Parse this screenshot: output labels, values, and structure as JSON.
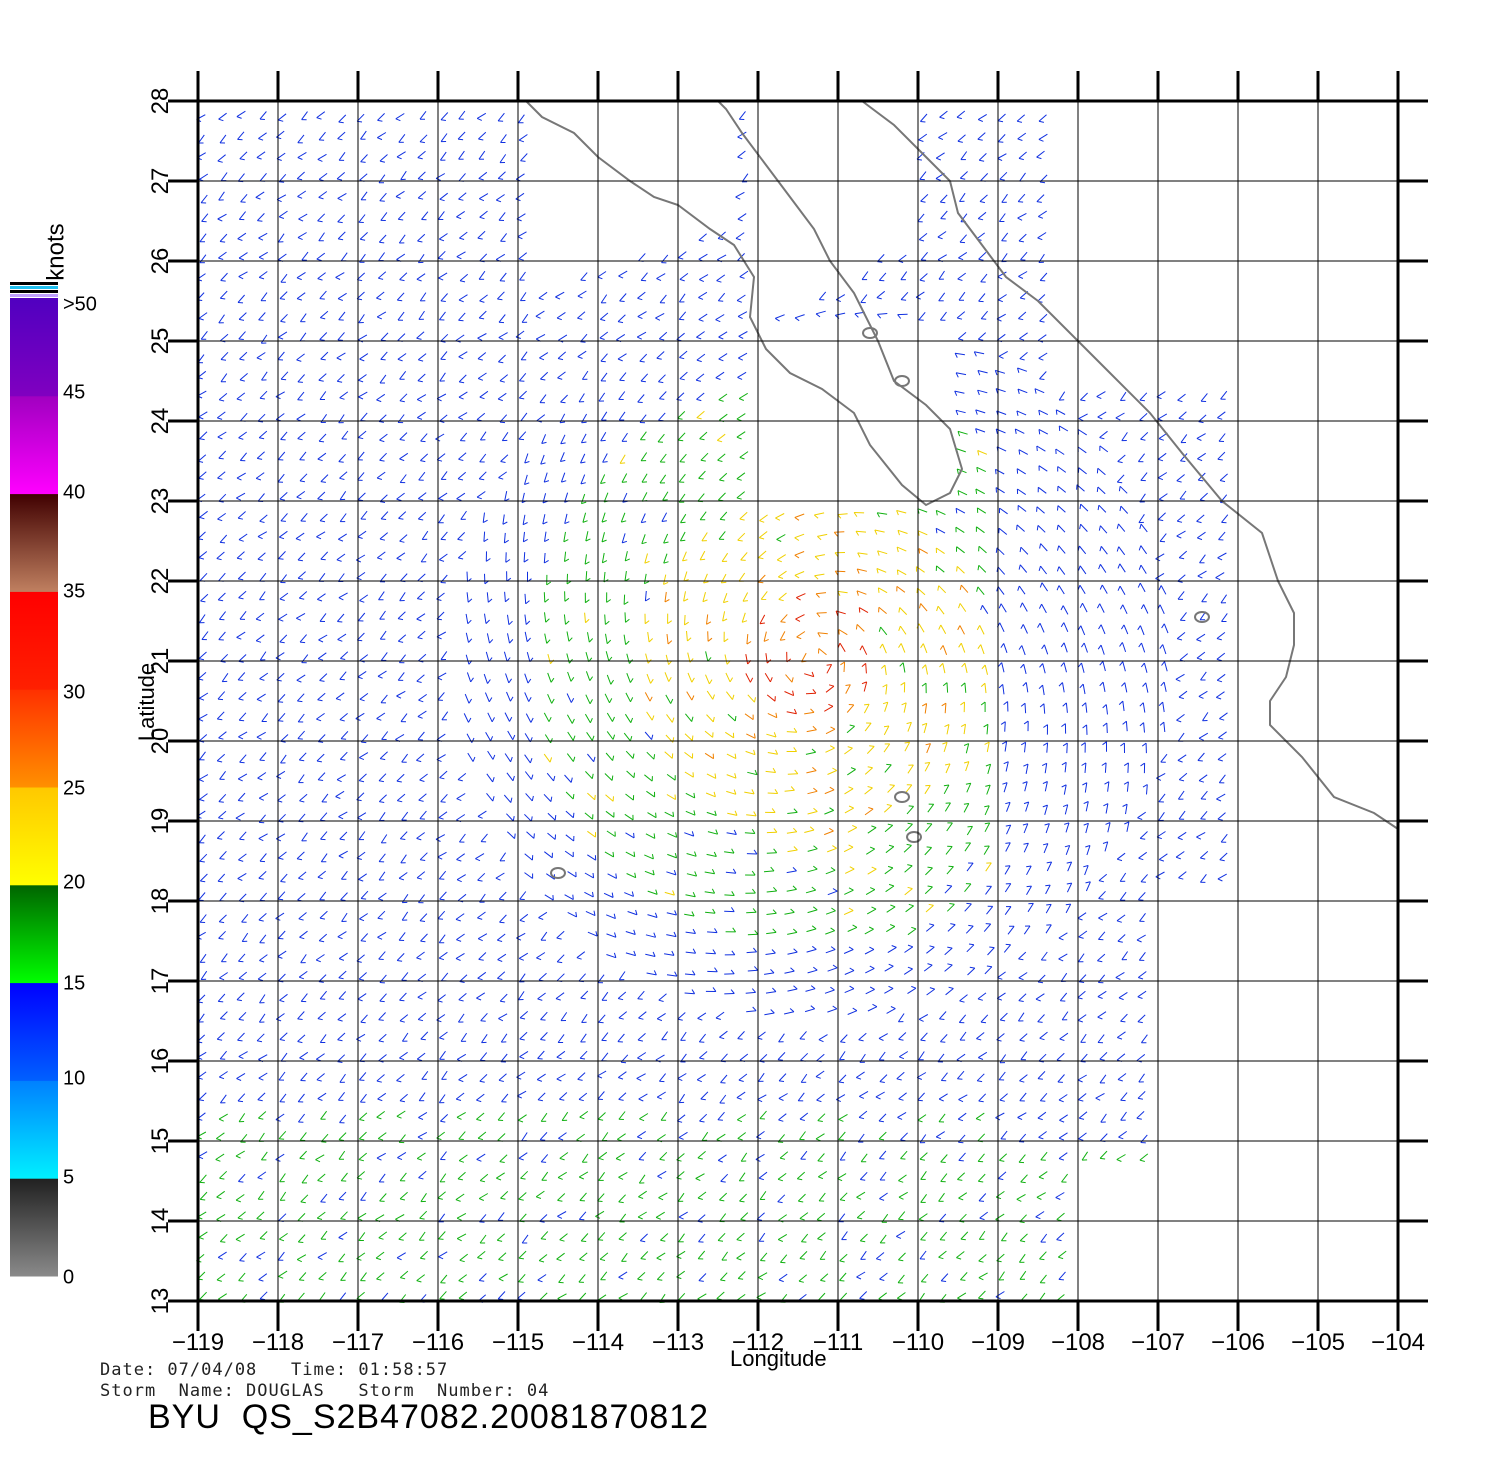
{
  "map": {
    "xlabel": "Longitude",
    "ylabel": "Latitude",
    "lon_range": [
      -119,
      -104
    ],
    "lat_range": [
      13,
      28
    ],
    "lon_ticks": [
      -119,
      -118,
      -117,
      -116,
      -115,
      -114,
      -113,
      -112,
      -111,
      -110,
      -109,
      -108,
      -107,
      -106,
      -105,
      -104
    ],
    "lat_ticks": [
      13,
      14,
      15,
      16,
      17,
      18,
      19,
      20,
      21,
      22,
      23,
      24,
      25,
      26,
      27,
      28
    ],
    "grid": true,
    "coastline_color": "#777777",
    "coastline": [
      [
        -114.9,
        28.0
      ],
      [
        -114.7,
        27.8
      ],
      [
        -114.3,
        27.6
      ],
      [
        -114.0,
        27.3
      ],
      [
        -113.6,
        27.0
      ],
      [
        -113.3,
        26.8
      ],
      [
        -113.0,
        26.7
      ],
      [
        -112.6,
        26.4
      ],
      [
        -112.3,
        26.2
      ],
      [
        -112.05,
        25.8
      ],
      [
        -112.1,
        25.3
      ],
      [
        -111.9,
        24.9
      ],
      [
        -111.6,
        24.6
      ],
      [
        -111.2,
        24.4
      ],
      [
        -110.8,
        24.1
      ],
      [
        -110.6,
        23.7
      ],
      [
        -110.2,
        23.2
      ],
      [
        -109.9,
        22.95
      ],
      [
        -109.6,
        23.1
      ],
      [
        -109.45,
        23.4
      ],
      [
        -109.6,
        23.9
      ],
      [
        -109.9,
        24.2
      ],
      [
        -110.3,
        24.5
      ],
      [
        -110.5,
        25.0
      ],
      [
        -110.8,
        25.6
      ],
      [
        -111.1,
        26.0
      ],
      [
        -111.3,
        26.4
      ],
      [
        -111.6,
        26.8
      ],
      [
        -111.9,
        27.2
      ],
      [
        -112.2,
        27.6
      ],
      [
        -112.4,
        27.9
      ],
      [
        -112.5,
        28.0
      ]
    ],
    "coastline_mainland": [
      [
        -110.7,
        28.0
      ],
      [
        -110.3,
        27.7
      ],
      [
        -109.9,
        27.3
      ],
      [
        -109.6,
        27.0
      ],
      [
        -109.5,
        26.6
      ],
      [
        -109.2,
        26.2
      ],
      [
        -108.9,
        25.8
      ],
      [
        -108.5,
        25.5
      ],
      [
        -108.0,
        25.0
      ],
      [
        -107.6,
        24.6
      ],
      [
        -107.1,
        24.1
      ],
      [
        -106.7,
        23.6
      ],
      [
        -106.2,
        23.0
      ],
      [
        -105.7,
        22.6
      ],
      [
        -105.5,
        22.0
      ],
      [
        -105.3,
        21.6
      ],
      [
        -105.3,
        21.2
      ],
      [
        -105.4,
        20.8
      ],
      [
        -105.6,
        20.5
      ],
      [
        -105.6,
        20.2
      ],
      [
        -105.2,
        19.8
      ],
      [
        -104.8,
        19.3
      ],
      [
        -104.3,
        19.1
      ],
      [
        -104.0,
        18.9
      ]
    ],
    "islands": [
      {
        "lon": -114.5,
        "lat": 18.35
      },
      {
        "lon": -110.2,
        "lat": 19.3
      },
      {
        "lon": -110.05,
        "lat": 18.8
      },
      {
        "lon": -106.45,
        "lat": 21.55
      },
      {
        "lon": -110.6,
        "lat": 25.1
      },
      {
        "lon": -110.2,
        "lat": 24.5
      }
    ]
  },
  "colorbar": {
    "units": "knots",
    "labels": [
      ">50",
      "45",
      "40",
      "35",
      "30",
      "25",
      "20",
      "15",
      "10",
      "5",
      "0"
    ],
    "bands": [
      {
        "from": 0,
        "to": 5,
        "color_top": "#202020",
        "color_bottom": "#8a8a8a"
      },
      {
        "from": 5,
        "to": 10,
        "color_top": "#0080ff",
        "color_bottom": "#00f0ff"
      },
      {
        "from": 10,
        "to": 15,
        "color_top": "#0000ff",
        "color_bottom": "#0060ff"
      },
      {
        "from": 15,
        "to": 20,
        "color_top": "#006400",
        "color_bottom": "#00ff00"
      },
      {
        "from": 20,
        "to": 25,
        "color_top": "#ffc800",
        "color_bottom": "#ffff00"
      },
      {
        "from": 25,
        "to": 30,
        "color_top": "#ff3000",
        "color_bottom": "#ff9000"
      },
      {
        "from": 30,
        "to": 35,
        "color_top": "#ff0000",
        "color_bottom": "#ff2000"
      },
      {
        "from": 35,
        "to": 40,
        "color_top": "#400000",
        "color_bottom": "#c08060"
      },
      {
        "from": 40,
        "to": 45,
        "color_top": "#a000c0",
        "color_bottom": "#ff00ff"
      },
      {
        "from": 45,
        "to": 50,
        "color_top": "#5000c0",
        "color_bottom": "#8000c0"
      }
    ]
  },
  "footer": {
    "date_line": "Date: 07/04/08   Time: 01:58:57",
    "storm_line": "Storm  Name: DOUGLAS   Storm  Number: 04",
    "title": "BYU  QS_S2B47082.20081870812"
  },
  "colors": {
    "blue": "#1030e0",
    "cyan": "#20c0f0",
    "green": "#10b010",
    "yellow": "#f0d000",
    "orange": "#f08000",
    "red": "#e02000",
    "grid": "#000000"
  }
}
